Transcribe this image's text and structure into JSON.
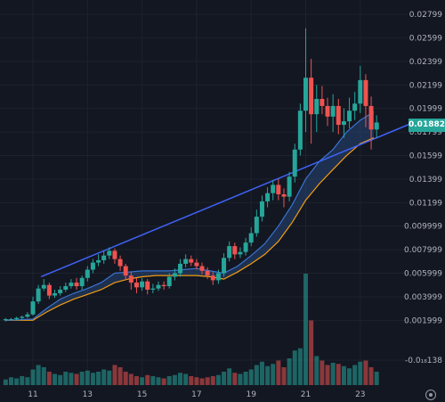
{
  "chart_data": {
    "type": "candlestick",
    "title": "",
    "xlabel": "",
    "ylabel": "",
    "ylim": [
      -0.00138,
      0.028
    ],
    "y_ticks": [
      "0.02799",
      "0.02599",
      "0.02399",
      "0.02199",
      "0.01999",
      "0.01799",
      "0.01599",
      "0.01399",
      "0.01199",
      "0.009999",
      "0.007999",
      "0.005999",
      "0.003999",
      "0.001999",
      "-0.0₁₈138"
    ],
    "y_tick_values": [
      0.02799,
      0.02599,
      0.02399,
      0.02199,
      0.01999,
      0.01799,
      0.01599,
      0.01399,
      0.01199,
      0.009999,
      0.007999,
      0.005999,
      0.003999,
      0.001999,
      -0.00138
    ],
    "x_ticks": [
      "11",
      "13",
      "15",
      "17",
      "19",
      "21",
      "23"
    ],
    "x_tick_values": [
      11,
      13,
      15,
      17,
      19,
      21,
      23
    ],
    "xlim": [
      10.0,
      24.0
    ],
    "last_price": "0.01882",
    "colors": {
      "up": "#26a69a",
      "down": "#ef5350",
      "trendline": "#3f63f5",
      "ma_fast": "#3a73d0",
      "ma_slow": "#f39c12",
      "grid": "#1e222d",
      "text": "#b2b5be",
      "background": "#131722",
      "band_fill": "#2a4f8a"
    },
    "grid": true,
    "series": [
      {
        "style": "candlestick",
        "x": [
          10.0,
          10.2,
          10.4,
          10.6,
          10.8,
          11.0,
          11.2,
          11.4,
          11.6,
          11.8,
          12.0,
          12.2,
          12.4,
          12.6,
          12.8,
          13.0,
          13.2,
          13.4,
          13.6,
          13.8,
          14.0,
          14.2,
          14.4,
          14.6,
          14.8,
          15.0,
          15.2,
          15.4,
          15.6,
          15.8,
          16.0,
          16.2,
          16.4,
          16.6,
          16.8,
          17.0,
          17.2,
          17.4,
          17.6,
          17.8,
          18.0,
          18.2,
          18.4,
          18.6,
          18.8,
          19.0,
          19.2,
          19.4,
          19.6,
          19.8,
          20.0,
          20.2,
          20.4,
          20.6,
          20.8,
          21.0,
          21.2,
          21.4,
          21.6,
          21.8,
          22.0,
          22.2,
          22.4,
          22.6,
          22.8,
          23.0,
          23.2,
          23.4,
          23.6
        ],
        "open": [
          0.002,
          0.0021,
          0.0021,
          0.0022,
          0.0023,
          0.0025,
          0.0036,
          0.0047,
          0.005,
          0.0041,
          0.0043,
          0.0046,
          0.0049,
          0.0052,
          0.0049,
          0.0056,
          0.0063,
          0.0069,
          0.0071,
          0.0075,
          0.0079,
          0.0072,
          0.0066,
          0.0058,
          0.0052,
          0.0048,
          0.0053,
          0.0046,
          0.0047,
          0.005,
          0.0049,
          0.0057,
          0.006,
          0.0068,
          0.0072,
          0.0069,
          0.0066,
          0.0062,
          0.0058,
          0.0054,
          0.006,
          0.0073,
          0.0083,
          0.0076,
          0.0078,
          0.0086,
          0.0094,
          0.0108,
          0.0121,
          0.0128,
          0.0135,
          0.0127,
          0.0125,
          0.0142,
          0.0165,
          0.0198,
          0.0226,
          0.0195,
          0.0208,
          0.0202,
          0.0193,
          0.0202,
          0.0186,
          0.0189,
          0.0198,
          0.0204,
          0.0224,
          0.0202,
          0.0182
        ],
        "close": [
          0.0021,
          0.0021,
          0.0022,
          0.0023,
          0.0025,
          0.0036,
          0.0047,
          0.005,
          0.0041,
          0.0043,
          0.0046,
          0.0049,
          0.0052,
          0.0049,
          0.0056,
          0.0063,
          0.0069,
          0.0071,
          0.0075,
          0.0079,
          0.0072,
          0.0066,
          0.0058,
          0.0052,
          0.0048,
          0.0053,
          0.0046,
          0.0047,
          0.005,
          0.0049,
          0.0057,
          0.006,
          0.0068,
          0.0072,
          0.0069,
          0.0066,
          0.0062,
          0.0058,
          0.0054,
          0.006,
          0.0073,
          0.0083,
          0.0076,
          0.0078,
          0.0086,
          0.0094,
          0.0108,
          0.0121,
          0.0128,
          0.0135,
          0.0127,
          0.0125,
          0.0142,
          0.0165,
          0.0198,
          0.0226,
          0.0195,
          0.0208,
          0.0202,
          0.0193,
          0.0202,
          0.0186,
          0.0189,
          0.0198,
          0.0204,
          0.0224,
          0.0202,
          0.0182,
          0.0188
        ],
        "high": [
          0.0022,
          0.0022,
          0.0023,
          0.0024,
          0.0027,
          0.004,
          0.005,
          0.0055,
          0.0052,
          0.0046,
          0.0049,
          0.0052,
          0.0055,
          0.0056,
          0.0058,
          0.0066,
          0.0072,
          0.0076,
          0.0079,
          0.0082,
          0.0081,
          0.0075,
          0.0068,
          0.0061,
          0.0056,
          0.0056,
          0.0055,
          0.0051,
          0.0053,
          0.0053,
          0.006,
          0.0064,
          0.0072,
          0.0076,
          0.0075,
          0.0072,
          0.0069,
          0.0065,
          0.0061,
          0.0063,
          0.0077,
          0.0087,
          0.0086,
          0.0082,
          0.009,
          0.0099,
          0.0114,
          0.0126,
          0.0133,
          0.0139,
          0.014,
          0.0132,
          0.0146,
          0.017,
          0.0204,
          0.0268,
          0.0242,
          0.022,
          0.0219,
          0.0209,
          0.0212,
          0.0208,
          0.02,
          0.0209,
          0.0214,
          0.0236,
          0.0229,
          0.021,
          0.0194
        ],
        "low": [
          0.0019,
          0.002,
          0.002,
          0.0021,
          0.0022,
          0.0024,
          0.0034,
          0.0045,
          0.0038,
          0.0039,
          0.0041,
          0.0044,
          0.0047,
          0.0046,
          0.0046,
          0.0053,
          0.006,
          0.0066,
          0.0068,
          0.0072,
          0.0068,
          0.0062,
          0.0054,
          0.0046,
          0.0043,
          0.0045,
          0.0042,
          0.0043,
          0.0045,
          0.0046,
          0.0047,
          0.0054,
          0.0057,
          0.0065,
          0.0066,
          0.0063,
          0.0059,
          0.0055,
          0.005,
          0.0051,
          0.0057,
          0.007,
          0.0072,
          0.0073,
          0.0075,
          0.0083,
          0.0091,
          0.0104,
          0.0116,
          0.0122,
          0.0122,
          0.0116,
          0.0121,
          0.0137,
          0.016,
          0.018,
          0.017,
          0.018,
          0.0195,
          0.0185,
          0.018,
          0.0178,
          0.0175,
          0.0183,
          0.019,
          0.0196,
          0.0184,
          0.0165,
          0.0175
        ]
      },
      {
        "name": "",
        "style": "line",
        "role": "ma_fast",
        "x": [
          10.0,
          11.0,
          11.5,
          12.0,
          12.5,
          13.0,
          13.5,
          14.0,
          14.5,
          15.0,
          15.5,
          16.0,
          16.5,
          17.0,
          17.5,
          18.0,
          18.5,
          19.0,
          19.5,
          20.0,
          20.5,
          21.0,
          21.5,
          22.0,
          22.5,
          23.0,
          23.5
        ],
        "values": [
          0.002,
          0.0021,
          0.003,
          0.0038,
          0.0043,
          0.0047,
          0.0052,
          0.006,
          0.0061,
          0.0062,
          0.0062,
          0.0062,
          0.0063,
          0.0064,
          0.0062,
          0.006,
          0.0066,
          0.0075,
          0.0085,
          0.01,
          0.0118,
          0.014,
          0.0155,
          0.0165,
          0.018,
          0.019,
          0.0197
        ]
      },
      {
        "name": "",
        "style": "line",
        "role": "ma_slow",
        "x": [
          10.0,
          11.0,
          11.5,
          12.0,
          12.5,
          13.0,
          13.5,
          14.0,
          14.5,
          15.0,
          15.5,
          16.0,
          16.5,
          17.0,
          17.5,
          18.0,
          18.5,
          19.0,
          19.5,
          20.0,
          20.5,
          21.0,
          21.5,
          22.0,
          22.5,
          23.0,
          23.5
        ],
        "values": [
          0.002,
          0.002,
          0.0027,
          0.0033,
          0.0038,
          0.0042,
          0.0046,
          0.0052,
          0.0055,
          0.0057,
          0.0058,
          0.0058,
          0.0058,
          0.0058,
          0.0057,
          0.0055,
          0.0061,
          0.0068,
          0.0076,
          0.0087,
          0.0103,
          0.0122,
          0.0136,
          0.0148,
          0.016,
          0.017,
          0.0175
        ]
      },
      {
        "name": "",
        "style": "trendline",
        "x": [
          11.3,
          23.6
        ],
        "values": [
          0.0057,
          0.0175
        ]
      },
      {
        "name": "",
        "style": "volume",
        "x": [
          10.0,
          10.2,
          10.4,
          10.6,
          10.8,
          11.0,
          11.2,
          11.4,
          11.6,
          11.8,
          12.0,
          12.2,
          12.4,
          12.6,
          12.8,
          13.0,
          13.2,
          13.4,
          13.6,
          13.8,
          14.0,
          14.2,
          14.4,
          14.6,
          14.8,
          15.0,
          15.2,
          15.4,
          15.6,
          15.8,
          16.0,
          16.2,
          16.4,
          16.6,
          16.8,
          17.0,
          17.2,
          17.4,
          17.6,
          17.8,
          18.0,
          18.2,
          18.4,
          18.6,
          18.8,
          19.0,
          19.2,
          19.4,
          19.6,
          19.8,
          20.0,
          20.2,
          20.4,
          20.6,
          20.8,
          21.0,
          21.2,
          21.4,
          21.6,
          21.8,
          22.0,
          22.2,
          22.4,
          22.6,
          22.8,
          23.0,
          23.2,
          23.4,
          23.6
        ],
        "values": [
          0.05,
          0.07,
          0.06,
          0.08,
          0.07,
          0.14,
          0.18,
          0.16,
          0.12,
          0.1,
          0.09,
          0.12,
          0.11,
          0.1,
          0.12,
          0.13,
          0.11,
          0.12,
          0.14,
          0.13,
          0.18,
          0.16,
          0.12,
          0.1,
          0.08,
          0.07,
          0.09,
          0.08,
          0.07,
          0.06,
          0.08,
          0.09,
          0.11,
          0.1,
          0.08,
          0.07,
          0.06,
          0.07,
          0.08,
          0.09,
          0.12,
          0.15,
          0.11,
          0.1,
          0.12,
          0.14,
          0.18,
          0.21,
          0.17,
          0.19,
          0.22,
          0.16,
          0.24,
          0.31,
          0.33,
          1.0,
          0.58,
          0.26,
          0.22,
          0.18,
          0.2,
          0.19,
          0.17,
          0.15,
          0.18,
          0.21,
          0.22,
          0.16,
          0.12
        ]
      }
    ]
  }
}
